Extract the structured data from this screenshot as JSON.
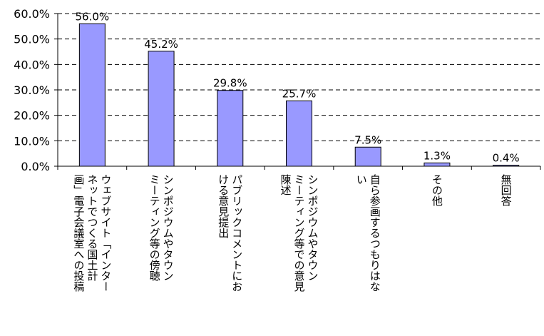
{
  "chart_data": {
    "type": "bar",
    "categories": [
      [
        "ウェブサイト「インター",
        "ネットでつくる国土計",
        "画」電子会議室への投稿"
      ],
      [
        "シンポジウムやタウン",
        "ミーティング等の傍聴"
      ],
      [
        "パブリックコメントにお",
        "ける意見提出"
      ],
      [
        "シンポジウムやタウン",
        "ミーティング等での意見",
        "陳述"
      ],
      [
        "自ら参画するつもりはな",
        "い"
      ],
      [
        "その他"
      ],
      [
        "無回答"
      ]
    ],
    "values": [
      56.0,
      45.2,
      29.8,
      25.7,
      7.5,
      1.3,
      0.4
    ],
    "data_labels": [
      "56.0%",
      "45.2%",
      "29.8%",
      "25.7%",
      "7.5%",
      "1.3%",
      "0.4%"
    ],
    "y_ticks": [
      "0.0%",
      "10.0%",
      "20.0%",
      "30.0%",
      "40.0%",
      "50.0%",
      "60.0%"
    ],
    "ylim": [
      0,
      60
    ],
    "grid": "dashed horizontal",
    "bar_color": "#9999ff",
    "bar_stroke": "#000000"
  }
}
